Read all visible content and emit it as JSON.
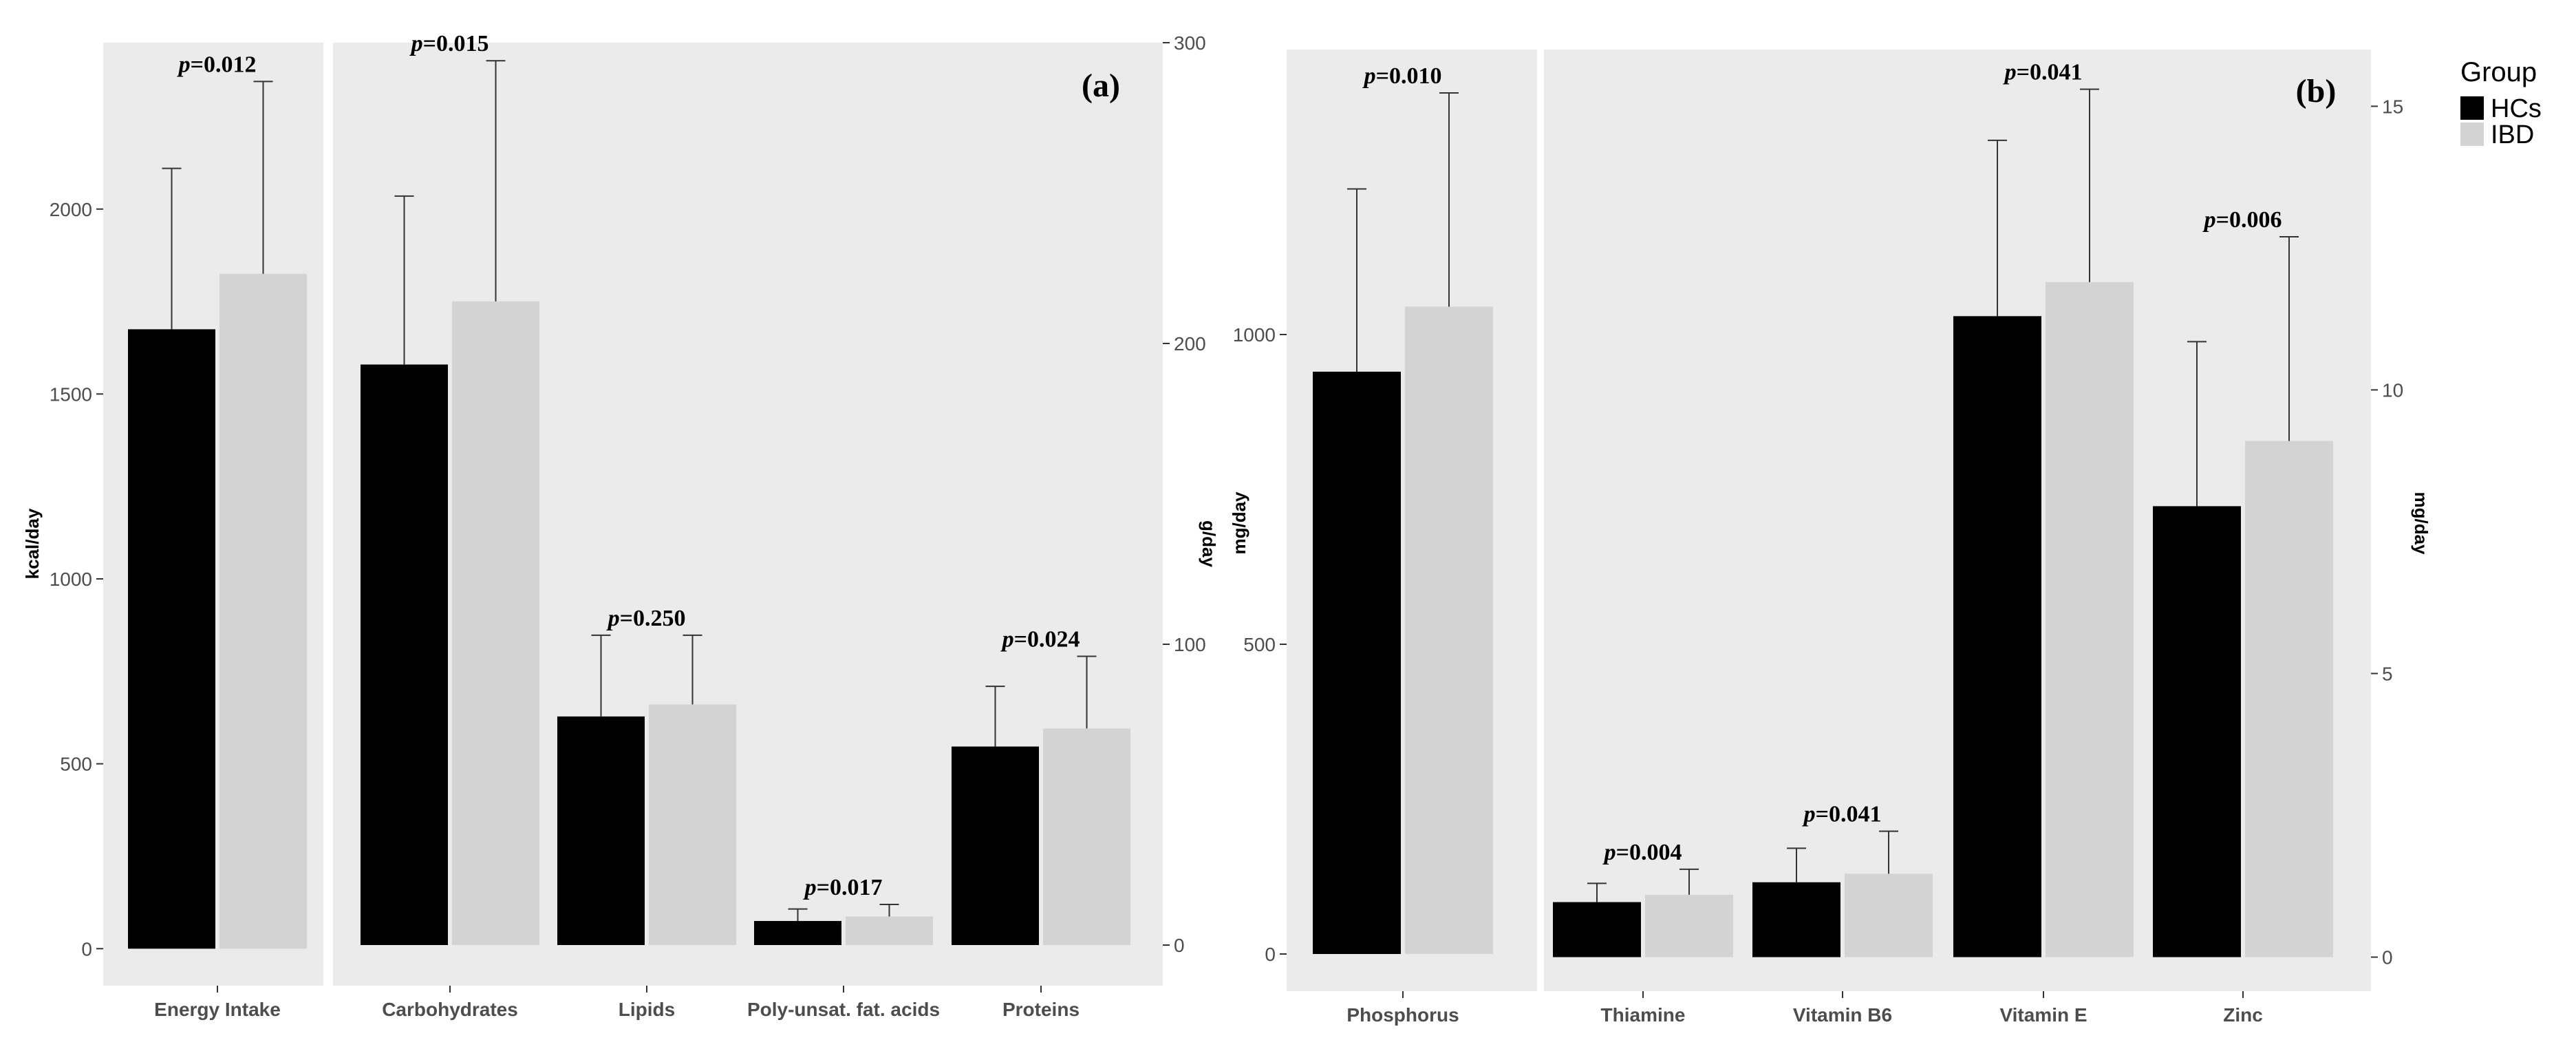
{
  "chart_data": [
    {
      "panel_label": "(a)",
      "type": "bar",
      "ylabel_left": "kcal/day",
      "ylabel_right": "g/day",
      "ylim_left": [
        -100,
        2450
      ],
      "ylim_right": [
        -13.5,
        300
      ],
      "yticks_left": [
        0,
        500,
        1000,
        1500,
        2000
      ],
      "yticks_right": [
        0,
        100,
        200,
        300
      ],
      "groups": [
        {
          "categories": [
            {
              "name": "Energy Intake",
              "axis": "left",
              "p_value": "0.012",
              "hc": 1675,
              "hc_err": 435,
              "ibd": 1825,
              "ibd_err": 520
            }
          ]
        },
        {
          "categories": [
            {
              "name": "Carbohydrates",
              "axis": "right",
              "p_value": "0.015",
              "hc": 193,
              "hc_err": 56,
              "ibd": 214,
              "ibd_err": 80
            },
            {
              "name": "Lipids",
              "axis": "right",
              "p_value": "0.250",
              "hc": 76,
              "hc_err": 27,
              "ibd": 80,
              "ibd_err": 23
            },
            {
              "name": "Poly-unsat. fat. acids",
              "axis": "right",
              "p_value": "0.017",
              "hc": 8,
              "hc_err": 4,
              "ibd": 9.5,
              "ibd_err": 4
            },
            {
              "name": "Proteins",
              "axis": "right",
              "p_value": "0.024",
              "hc": 66,
              "hc_err": 20,
              "ibd": 72,
              "ibd_err": 24
            }
          ]
        }
      ]
    },
    {
      "panel_label": "(b)",
      "type": "bar",
      "ylabel_left": "mg/day",
      "ylabel_right": "mg/day",
      "ylim_left": [
        -60,
        1460
      ],
      "ylim_right": [
        -0.6,
        16
      ],
      "yticks_left": [
        0,
        500,
        1000
      ],
      "yticks_right": [
        0,
        5,
        10,
        15
      ],
      "groups": [
        {
          "categories": [
            {
              "name": "Phosphorus",
              "axis": "left",
              "p_value": "0.010",
              "hc": 940,
              "hc_err": 295,
              "ibd": 1045,
              "ibd_err": 345
            }
          ]
        },
        {
          "categories": [
            {
              "name": "Thiamine",
              "axis": "right",
              "p_value": "0.004",
              "hc": 0.97,
              "hc_err": 0.33,
              "ibd": 1.1,
              "ibd_err": 0.45
            },
            {
              "name": "Vitamin B6",
              "axis": "right",
              "p_value": "0.041",
              "hc": 1.32,
              "hc_err": 0.6,
              "ibd": 1.47,
              "ibd_err": 0.75
            },
            {
              "name": "Vitamin E",
              "axis": "right",
              "p_value": "0.041",
              "hc": 11.3,
              "hc_err": 3.1,
              "ibd": 11.9,
              "ibd_err": 3.4
            },
            {
              "name": "Zinc",
              "axis": "right",
              "p_value": "0.006",
              "hc": 7.95,
              "hc_err": 2.9,
              "ibd": 9.1,
              "ibd_err": 3.6
            }
          ]
        }
      ]
    }
  ],
  "legend": {
    "title": "Group",
    "items": [
      {
        "label": "HCs",
        "color": "#000000"
      },
      {
        "label": "IBD",
        "color": "#d3d3d3"
      }
    ]
  },
  "colors": {
    "panel_bg": "#ebebeb",
    "hc": "#000000",
    "ibd": "#d3d3d3",
    "axis_text": "#4d4d4d",
    "errorbar": "#333333"
  },
  "p_prefix": "p"
}
